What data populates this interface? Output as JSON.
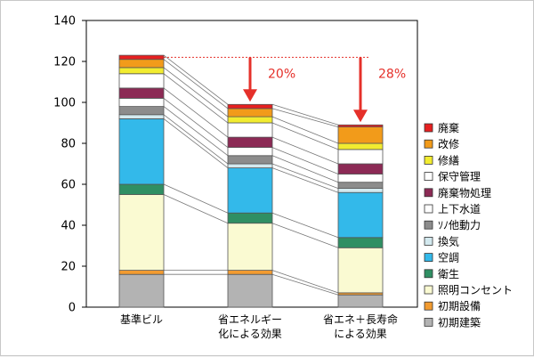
{
  "chart_data": {
    "type": "bar",
    "stacked": true,
    "categories": [
      [
        "基準ビル"
      ],
      [
        "省エネルギー",
        "化による効果"
      ],
      [
        "省エネ＋長寿命",
        "による効果"
      ]
    ],
    "ylim": [
      0,
      140
    ],
    "yticks": [
      0,
      20,
      40,
      60,
      80,
      100,
      120,
      140
    ],
    "grid": false,
    "legend_position": "right",
    "series": [
      {
        "name": "初期建築",
        "color": "#b3b3b3",
        "values": [
          16,
          16,
          6
        ]
      },
      {
        "name": "初期設備",
        "color": "#f29b30",
        "values": [
          2,
          2,
          1
        ]
      },
      {
        "name": "照明コンセント",
        "color": "#fafad2",
        "values": [
          37,
          23,
          22
        ]
      },
      {
        "name": "衛生",
        "color": "#2f8f63",
        "values": [
          5,
          5,
          5
        ]
      },
      {
        "name": "空調",
        "color": "#33b9ea",
        "values": [
          32,
          22,
          22
        ]
      },
      {
        "name": "換気",
        "color": "#d3e9ef",
        "values": [
          2,
          2,
          2
        ]
      },
      {
        "name": "ｿﾉ他動力",
        "color": "#8c8c8c",
        "values": [
          4,
          4,
          3
        ]
      },
      {
        "name": "上下水道",
        "color": "#ffffff",
        "values": [
          4,
          4,
          4
        ]
      },
      {
        "name": "廃棄物処理",
        "color": "#8c2a55",
        "values": [
          5,
          5,
          5
        ]
      },
      {
        "name": "保守管理",
        "color": "#ffffff",
        "values": [
          7,
          7,
          7
        ]
      },
      {
        "name": "修繕",
        "color": "#f2ec30",
        "values": [
          3,
          3,
          3
        ]
      },
      {
        "name": "改修",
        "color": "#f29b1a",
        "values": [
          4,
          4,
          8
        ]
      },
      {
        "name": "廃棄",
        "color": "#e62020",
        "values": [
          2,
          2,
          1
        ]
      }
    ],
    "reference_line": {
      "value": 122,
      "color": "#e5302a"
    },
    "annotations": [
      {
        "category_index": 1,
        "label": "20%"
      },
      {
        "category_index": 2,
        "label": "28%"
      }
    ]
  }
}
